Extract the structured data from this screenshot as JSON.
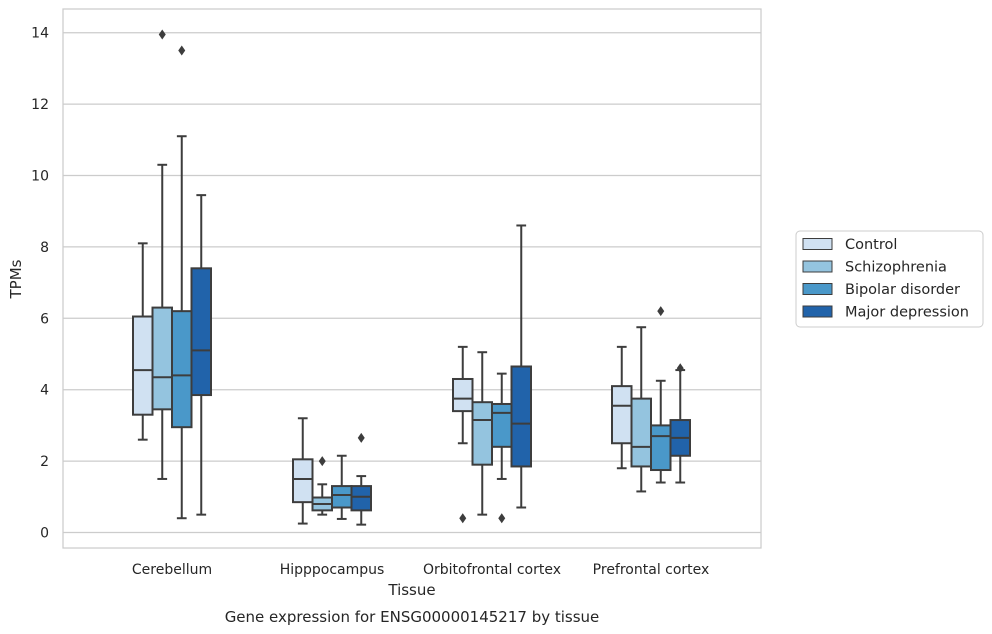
{
  "chart_data": {
    "type": "boxplot",
    "title": "",
    "caption": "Gene expression for ENSG00000145217 by tissue",
    "xlabel": "Tissue",
    "ylabel": "TPMs",
    "ylim": [
      -0.4,
      14.6
    ],
    "yticks": [
      0,
      2,
      4,
      6,
      8,
      10,
      12,
      14
    ],
    "grid": "horizontal",
    "legend_position": "right",
    "categories": [
      "Cerebellum",
      "Hipppocampus",
      "Orbitofrontal cortex",
      "Prefrontal cortex"
    ],
    "series": [
      {
        "name": "Control",
        "color": "#d0e1f2",
        "boxes": [
          {
            "whisker_low": 2.6,
            "q1": 3.3,
            "median": 4.55,
            "q3": 6.05,
            "whisker_high": 8.1,
            "outliers": []
          },
          {
            "whisker_low": 0.25,
            "q1": 0.85,
            "median": 1.5,
            "q3": 2.05,
            "whisker_high": 3.2,
            "outliers": []
          },
          {
            "whisker_low": 2.5,
            "q1": 3.4,
            "median": 3.75,
            "q3": 4.3,
            "whisker_high": 5.2,
            "outliers": [
              0.4
            ]
          },
          {
            "whisker_low": 1.8,
            "q1": 2.5,
            "median": 3.55,
            "q3": 4.1,
            "whisker_high": 5.2,
            "outliers": []
          }
        ]
      },
      {
        "name": "Schizophrenia",
        "color": "#94c4df",
        "boxes": [
          {
            "whisker_low": 1.5,
            "q1": 3.45,
            "median": 4.35,
            "q3": 6.3,
            "whisker_high": 10.3,
            "outliers": [
              13.95
            ]
          },
          {
            "whisker_low": 0.5,
            "q1": 0.62,
            "median": 0.8,
            "q3": 0.98,
            "whisker_high": 1.35,
            "outliers": [
              2.0
            ]
          },
          {
            "whisker_low": 0.5,
            "q1": 1.9,
            "median": 3.15,
            "q3": 3.65,
            "whisker_high": 5.05,
            "outliers": []
          },
          {
            "whisker_low": 1.15,
            "q1": 1.85,
            "median": 2.4,
            "q3": 3.75,
            "whisker_high": 5.75,
            "outliers": []
          }
        ]
      },
      {
        "name": "Bipolar disorder",
        "color": "#4a98c9",
        "boxes": [
          {
            "whisker_low": 0.4,
            "q1": 2.95,
            "median": 4.4,
            "q3": 6.2,
            "whisker_high": 11.1,
            "outliers": [
              13.5
            ]
          },
          {
            "whisker_low": 0.38,
            "q1": 0.7,
            "median": 1.05,
            "q3": 1.3,
            "whisker_high": 2.15,
            "outliers": []
          },
          {
            "whisker_low": 1.5,
            "q1": 2.4,
            "median": 3.35,
            "q3": 3.6,
            "whisker_high": 4.45,
            "outliers": [
              0.4
            ]
          },
          {
            "whisker_low": 1.4,
            "q1": 1.75,
            "median": 2.7,
            "q3": 3.0,
            "whisker_high": 4.25,
            "outliers": [
              6.2
            ]
          }
        ]
      },
      {
        "name": "Major depression",
        "color": "#2163aa",
        "boxes": [
          {
            "whisker_low": 0.5,
            "q1": 3.85,
            "median": 5.1,
            "q3": 7.4,
            "whisker_high": 9.45,
            "outliers": []
          },
          {
            "whisker_low": 0.22,
            "q1": 0.62,
            "median": 1.0,
            "q3": 1.3,
            "whisker_high": 1.58,
            "outliers": [
              2.65
            ]
          },
          {
            "whisker_low": 0.7,
            "q1": 1.85,
            "median": 3.05,
            "q3": 4.65,
            "whisker_high": 8.6,
            "outliers": []
          },
          {
            "whisker_low": 1.4,
            "q1": 2.15,
            "median": 2.65,
            "q3": 3.15,
            "whisker_high": 4.55,
            "outliers": [
              4.6
            ]
          }
        ]
      }
    ]
  }
}
